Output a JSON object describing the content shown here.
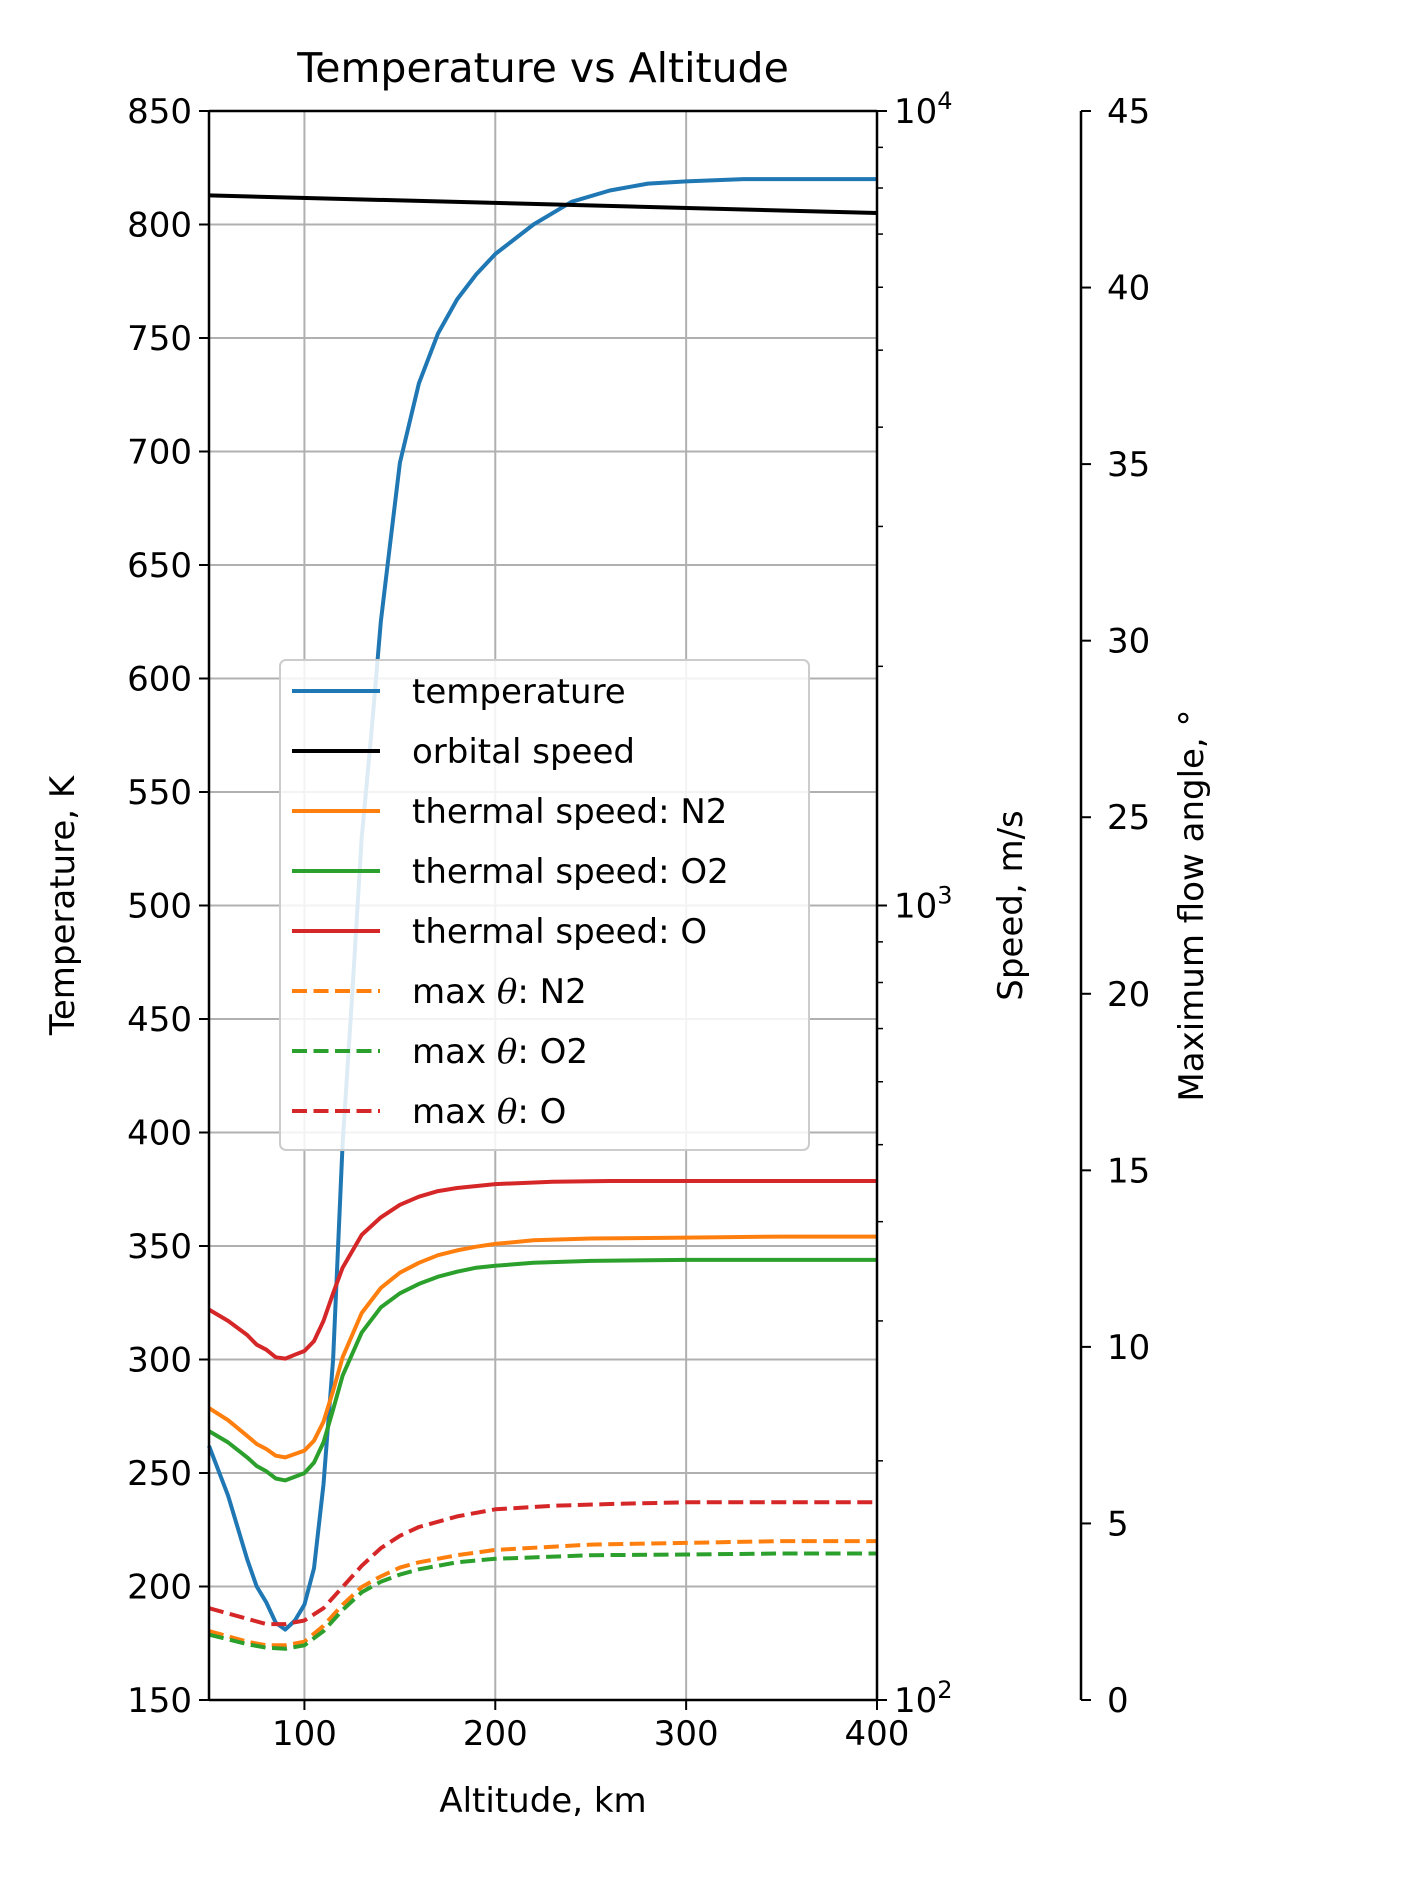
{
  "chart_data": {
    "type": "line",
    "title": "Temperature vs Altitude",
    "xlabel": "Altitude, km",
    "xlim": [
      50,
      400
    ],
    "x_ticks": [
      100,
      200,
      300,
      400
    ],
    "grid": true,
    "legend_placement": "center-left",
    "y_axes": [
      {
        "id": "temp",
        "label": "Temperature, K",
        "side": "left",
        "scale": "linear",
        "lim": [
          150,
          850
        ],
        "ticks": [
          150,
          200,
          250,
          300,
          350,
          400,
          450,
          500,
          550,
          600,
          650,
          700,
          750,
          800,
          850
        ]
      },
      {
        "id": "speed",
        "label": "Speed, m/s",
        "side": "right",
        "scale": "log",
        "lim": [
          100,
          10000
        ],
        "ticks": [
          {
            "value": 100,
            "base": "10",
            "exp": "2"
          },
          {
            "value": 1000,
            "base": "10",
            "exp": "3"
          },
          {
            "value": 10000,
            "base": "10",
            "exp": "4"
          }
        ]
      },
      {
        "id": "angle",
        "label": "Maximum flow angle, °",
        "side": "right-outer",
        "scale": "linear",
        "lim": [
          0,
          45
        ],
        "ticks": [
          0,
          5,
          10,
          15,
          20,
          25,
          30,
          35,
          40,
          45
        ]
      }
    ],
    "series": [
      {
        "name": "temperature",
        "axis": "temp",
        "color": "#1f77b4",
        "dash": false,
        "x": [
          50,
          60,
          70,
          75,
          80,
          85,
          90,
          95,
          100,
          105,
          110,
          115,
          120,
          125,
          130,
          135,
          140,
          145,
          150,
          160,
          170,
          180,
          190,
          200,
          220,
          240,
          260,
          280,
          300,
          330,
          360,
          400
        ],
        "y": [
          262,
          240,
          212,
          200,
          193,
          184,
          181,
          185,
          192,
          208,
          245,
          300,
          395,
          460,
          530,
          575,
          625,
          660,
          695,
          730,
          752,
          767,
          778,
          787,
          800,
          810,
          815,
          818,
          819,
          820,
          820,
          820
        ]
      },
      {
        "name": "orbital speed",
        "axis": "speed",
        "color": "#000000",
        "dash": false,
        "x": [
          50,
          400
        ],
        "y": [
          7830,
          7440
        ]
      },
      {
        "name": "thermal speed: N2",
        "axis": "speed",
        "color": "#ff7f0e",
        "dash": false,
        "x": [
          50,
          60,
          70,
          75,
          80,
          85,
          90,
          95,
          100,
          105,
          110,
          115,
          120,
          130,
          140,
          150,
          160,
          170,
          180,
          190,
          200,
          220,
          250,
          300,
          350,
          400
        ],
        "y": [
          233,
          225,
          215,
          210,
          207,
          203,
          202,
          204,
          206,
          212,
          224,
          245,
          270,
          307,
          330,
          345,
          355,
          363,
          368,
          372,
          375,
          379,
          381,
          382,
          383,
          383
        ]
      },
      {
        "name": "thermal speed: O2",
        "axis": "speed",
        "color": "#2ca02c",
        "dash": false,
        "x": [
          50,
          60,
          70,
          75,
          80,
          85,
          90,
          95,
          100,
          105,
          110,
          115,
          120,
          130,
          140,
          150,
          160,
          170,
          180,
          190,
          200,
          220,
          250,
          300,
          350,
          400
        ],
        "y": [
          218,
          211,
          202,
          197,
          194,
          190,
          189,
          191,
          193,
          199,
          211,
          232,
          256,
          290,
          312,
          325,
          334,
          341,
          346,
          350,
          352,
          355,
          357,
          358,
          358,
          358
        ]
      },
      {
        "name": "thermal speed: O",
        "axis": "speed",
        "color": "#d62728",
        "dash": false,
        "x": [
          50,
          60,
          70,
          75,
          80,
          85,
          90,
          95,
          100,
          105,
          110,
          115,
          120,
          130,
          140,
          150,
          160,
          170,
          180,
          200,
          230,
          260,
          300,
          400
        ],
        "y": [
          310,
          300,
          288,
          280,
          276,
          270,
          269,
          272,
          275,
          283,
          300,
          325,
          350,
          385,
          405,
          420,
          430,
          437,
          441,
          446,
          449,
          450,
          450,
          450
        ]
      },
      {
        "name": "max θ: N2",
        "axis": "angle",
        "color": "#ff7f0e",
        "dash": true,
        "x": [
          50,
          60,
          70,
          80,
          90,
          100,
          110,
          120,
          130,
          140,
          150,
          160,
          180,
          200,
          250,
          300,
          350,
          400
        ],
        "y": [
          1.95,
          1.8,
          1.65,
          1.55,
          1.55,
          1.65,
          2.1,
          2.7,
          3.2,
          3.5,
          3.75,
          3.9,
          4.1,
          4.25,
          4.4,
          4.45,
          4.5,
          4.5
        ]
      },
      {
        "name": "max θ: O2",
        "axis": "angle",
        "color": "#2ca02c",
        "dash": true,
        "x": [
          50,
          60,
          70,
          80,
          90,
          100,
          110,
          120,
          130,
          140,
          150,
          160,
          180,
          200,
          250,
          300,
          350,
          400
        ],
        "y": [
          1.85,
          1.72,
          1.58,
          1.48,
          1.45,
          1.55,
          1.95,
          2.55,
          3.05,
          3.35,
          3.55,
          3.7,
          3.9,
          4.0,
          4.1,
          4.12,
          4.15,
          4.15
        ]
      },
      {
        "name": "max θ: O",
        "axis": "angle",
        "color": "#d62728",
        "dash": true,
        "x": [
          50,
          60,
          70,
          80,
          90,
          100,
          110,
          120,
          130,
          140,
          150,
          160,
          180,
          200,
          230,
          260,
          300,
          400
        ],
        "y": [
          2.6,
          2.45,
          2.3,
          2.15,
          2.15,
          2.25,
          2.6,
          3.2,
          3.8,
          4.3,
          4.65,
          4.9,
          5.2,
          5.4,
          5.5,
          5.55,
          5.6,
          5.6
        ]
      }
    ],
    "legend": [
      {
        "label": "temperature",
        "color": "#1f77b4",
        "dash": false
      },
      {
        "label": "orbital speed",
        "color": "#000000",
        "dash": false
      },
      {
        "label": "thermal speed: N2",
        "color": "#ff7f0e",
        "dash": false
      },
      {
        "label": "thermal speed: O2",
        "color": "#2ca02c",
        "dash": false
      },
      {
        "label": "thermal speed: O",
        "color": "#d62728",
        "dash": false
      },
      {
        "label_prefix": "max ",
        "label_symbol": "θ",
        "label_suffix": ": N2",
        "color": "#ff7f0e",
        "dash": true
      },
      {
        "label_prefix": "max ",
        "label_symbol": "θ",
        "label_suffix": ": O2",
        "color": "#2ca02c",
        "dash": true
      },
      {
        "label_prefix": "max ",
        "label_symbol": "θ",
        "label_suffix": ": O",
        "color": "#d62728",
        "dash": true
      }
    ]
  }
}
